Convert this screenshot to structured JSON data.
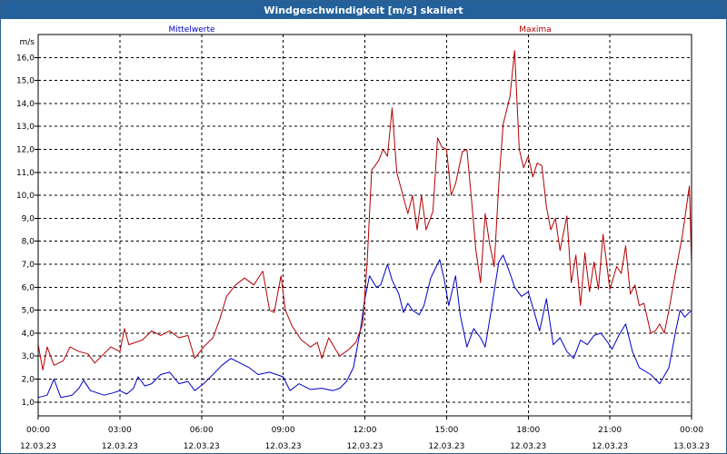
{
  "chart_data": {
    "type": "line",
    "title": "Windgeschwindigkeit [m/s] skaliert",
    "ylabel": "m/s",
    "ylim": [
      0.4,
      17.0
    ],
    "yticks": [
      1.0,
      2.0,
      3.0,
      4.0,
      5.0,
      6.0,
      7.0,
      8.0,
      9.0,
      10.0,
      11.0,
      12.0,
      13.0,
      14.0,
      15.0,
      16.0
    ],
    "ytick_labels": [
      "1,0",
      "2,0",
      "3,0",
      "4,0",
      "5,0",
      "6,0",
      "7,0",
      "8,0",
      "9,0",
      "10,0",
      "11,0",
      "12,0",
      "13,0",
      "14,0",
      "15,0",
      "16,0"
    ],
    "xlim": [
      0,
      24
    ],
    "xticks": [
      0,
      3,
      6,
      9,
      12,
      15,
      18,
      21,
      24
    ],
    "xtick_times": [
      "00:00",
      "03:00",
      "06:00",
      "09:00",
      "12:00",
      "15:00",
      "18:00",
      "21:00",
      "00:00"
    ],
    "xtick_dates": [
      "12.03.23",
      "12.03.23",
      "12.03.23",
      "12.03.23",
      "12.03.23",
      "12.03.23",
      "12.03.23",
      "12.03.23",
      "13.03.23"
    ],
    "grid": true,
    "series": [
      {
        "name": "Mittelwerte",
        "color": "#0000c8",
        "points": [
          [
            0,
            1.2
          ],
          [
            0.33,
            1.3
          ],
          [
            0.58,
            2.0
          ],
          [
            0.83,
            1.2
          ],
          [
            1.25,
            1.3
          ],
          [
            1.5,
            1.6
          ],
          [
            1.67,
            1.95
          ],
          [
            1.92,
            1.5
          ],
          [
            2.17,
            1.4
          ],
          [
            2.42,
            1.3
          ],
          [
            2.75,
            1.4
          ],
          [
            3.0,
            1.5
          ],
          [
            3.25,
            1.35
          ],
          [
            3.5,
            1.6
          ],
          [
            3.67,
            2.1
          ],
          [
            3.92,
            1.7
          ],
          [
            4.17,
            1.8
          ],
          [
            4.5,
            2.2
          ],
          [
            4.83,
            2.3
          ],
          [
            5.17,
            1.8
          ],
          [
            5.5,
            1.9
          ],
          [
            5.75,
            1.5
          ],
          [
            6.08,
            1.8
          ],
          [
            6.42,
            2.2
          ],
          [
            6.75,
            2.6
          ],
          [
            7.08,
            2.9
          ],
          [
            7.42,
            2.7
          ],
          [
            7.75,
            2.5
          ],
          [
            8.08,
            2.2
          ],
          [
            8.5,
            2.3
          ],
          [
            9.0,
            2.1
          ],
          [
            9.25,
            1.5
          ],
          [
            9.58,
            1.8
          ],
          [
            10.0,
            1.55
          ],
          [
            10.42,
            1.6
          ],
          [
            10.83,
            1.5
          ],
          [
            11.08,
            1.6
          ],
          [
            11.33,
            1.9
          ],
          [
            11.58,
            2.5
          ],
          [
            11.83,
            4.1
          ],
          [
            12.0,
            5.5
          ],
          [
            12.17,
            6.5
          ],
          [
            12.42,
            6.0
          ],
          [
            12.58,
            6.1
          ],
          [
            12.83,
            7.0
          ],
          [
            13.0,
            6.3
          ],
          [
            13.25,
            5.7
          ],
          [
            13.42,
            4.9
          ],
          [
            13.58,
            5.3
          ],
          [
            13.75,
            5.0
          ],
          [
            14.0,
            4.8
          ],
          [
            14.17,
            5.2
          ],
          [
            14.42,
            6.4
          ],
          [
            14.58,
            6.8
          ],
          [
            14.75,
            7.2
          ],
          [
            14.92,
            6.3
          ],
          [
            15.08,
            5.2
          ],
          [
            15.33,
            6.5
          ],
          [
            15.5,
            4.8
          ],
          [
            15.75,
            3.4
          ],
          [
            16.0,
            4.2
          ],
          [
            16.25,
            3.8
          ],
          [
            16.42,
            3.4
          ],
          [
            16.67,
            5.2
          ],
          [
            16.92,
            7.1
          ],
          [
            17.08,
            7.4
          ],
          [
            17.33,
            6.6
          ],
          [
            17.5,
            6.0
          ],
          [
            17.75,
            5.6
          ],
          [
            18.0,
            5.8
          ],
          [
            18.25,
            4.8
          ],
          [
            18.42,
            4.1
          ],
          [
            18.67,
            5.5
          ],
          [
            18.92,
            3.5
          ],
          [
            19.17,
            3.8
          ],
          [
            19.42,
            3.2
          ],
          [
            19.67,
            2.9
          ],
          [
            19.92,
            3.7
          ],
          [
            20.17,
            3.5
          ],
          [
            20.42,
            3.9
          ],
          [
            20.67,
            4.0
          ],
          [
            20.92,
            3.6
          ],
          [
            21.08,
            3.3
          ],
          [
            21.33,
            3.9
          ],
          [
            21.58,
            4.4
          ],
          [
            21.83,
            3.2
          ],
          [
            22.08,
            2.5
          ],
          [
            22.5,
            2.2
          ],
          [
            22.83,
            1.8
          ],
          [
            23.17,
            2.5
          ],
          [
            23.42,
            4.1
          ],
          [
            23.58,
            5.0
          ],
          [
            23.75,
            4.7
          ],
          [
            24.0,
            5.0
          ]
        ]
      },
      {
        "name": "Maxima",
        "color": "#b40000",
        "points": [
          [
            0,
            3.5
          ],
          [
            0.17,
            2.4
          ],
          [
            0.33,
            3.4
          ],
          [
            0.58,
            2.6
          ],
          [
            0.92,
            2.8
          ],
          [
            1.17,
            3.4
          ],
          [
            1.5,
            3.2
          ],
          [
            1.83,
            3.1
          ],
          [
            2.08,
            2.7
          ],
          [
            2.33,
            3.0
          ],
          [
            2.67,
            3.4
          ],
          [
            3.0,
            3.2
          ],
          [
            3.17,
            4.2
          ],
          [
            3.33,
            3.5
          ],
          [
            3.58,
            3.6
          ],
          [
            3.83,
            3.7
          ],
          [
            4.17,
            4.1
          ],
          [
            4.5,
            3.9
          ],
          [
            4.83,
            4.1
          ],
          [
            5.17,
            3.8
          ],
          [
            5.5,
            3.9
          ],
          [
            5.75,
            2.9
          ],
          [
            6.08,
            3.4
          ],
          [
            6.42,
            3.8
          ],
          [
            6.67,
            4.6
          ],
          [
            6.92,
            5.6
          ],
          [
            7.25,
            6.1
          ],
          [
            7.58,
            6.4
          ],
          [
            7.92,
            6.1
          ],
          [
            8.25,
            6.7
          ],
          [
            8.5,
            5.0
          ],
          [
            8.67,
            4.9
          ],
          [
            8.92,
            6.5
          ],
          [
            9.08,
            5.0
          ],
          [
            9.33,
            4.3
          ],
          [
            9.67,
            3.7
          ],
          [
            10.0,
            3.4
          ],
          [
            10.25,
            3.6
          ],
          [
            10.42,
            2.9
          ],
          [
            10.67,
            3.8
          ],
          [
            10.92,
            3.3
          ],
          [
            11.08,
            3.0
          ],
          [
            11.42,
            3.3
          ],
          [
            11.67,
            3.6
          ],
          [
            11.92,
            4.4
          ],
          [
            12.08,
            7.0
          ],
          [
            12.25,
            11.1
          ],
          [
            12.5,
            11.5
          ],
          [
            12.67,
            12.0
          ],
          [
            12.83,
            11.7
          ],
          [
            13.0,
            13.8
          ],
          [
            13.17,
            11.0
          ],
          [
            13.42,
            9.9
          ],
          [
            13.58,
            9.2
          ],
          [
            13.75,
            10.0
          ],
          [
            13.92,
            8.5
          ],
          [
            14.08,
            10.0
          ],
          [
            14.25,
            8.5
          ],
          [
            14.5,
            9.3
          ],
          [
            14.67,
            12.5
          ],
          [
            14.83,
            12.1
          ],
          [
            15.0,
            12.0
          ],
          [
            15.17,
            10.0
          ],
          [
            15.33,
            10.5
          ],
          [
            15.58,
            11.9
          ],
          [
            15.75,
            12.0
          ],
          [
            15.92,
            9.8
          ],
          [
            16.08,
            7.6
          ],
          [
            16.25,
            6.2
          ],
          [
            16.42,
            9.2
          ],
          [
            16.58,
            7.9
          ],
          [
            16.75,
            6.9
          ],
          [
            16.92,
            10.5
          ],
          [
            17.08,
            13.1
          ],
          [
            17.33,
            14.3
          ],
          [
            17.5,
            16.3
          ],
          [
            17.67,
            12.0
          ],
          [
            17.83,
            11.2
          ],
          [
            18.0,
            11.7
          ],
          [
            18.17,
            10.8
          ],
          [
            18.33,
            11.4
          ],
          [
            18.5,
            11.3
          ],
          [
            18.67,
            9.5
          ],
          [
            18.83,
            8.5
          ],
          [
            19.0,
            9.0
          ],
          [
            19.17,
            7.6
          ],
          [
            19.42,
            9.1
          ],
          [
            19.58,
            6.2
          ],
          [
            19.75,
            7.4
          ],
          [
            19.92,
            5.2
          ],
          [
            20.08,
            7.5
          ],
          [
            20.25,
            5.8
          ],
          [
            20.42,
            7.1
          ],
          [
            20.58,
            5.9
          ],
          [
            20.75,
            8.3
          ],
          [
            21.0,
            5.9
          ],
          [
            21.25,
            6.9
          ],
          [
            21.42,
            6.6
          ],
          [
            21.58,
            7.8
          ],
          [
            21.75,
            5.7
          ],
          [
            21.92,
            6.1
          ],
          [
            22.08,
            5.2
          ],
          [
            22.25,
            5.3
          ],
          [
            22.5,
            4.0
          ],
          [
            22.67,
            4.1
          ],
          [
            22.83,
            4.4
          ],
          [
            23.0,
            4.0
          ],
          [
            23.17,
            5.0
          ],
          [
            23.42,
            6.7
          ],
          [
            23.67,
            8.3
          ],
          [
            23.92,
            10.4
          ],
          [
            24.0,
            7.0
          ]
        ]
      }
    ]
  }
}
